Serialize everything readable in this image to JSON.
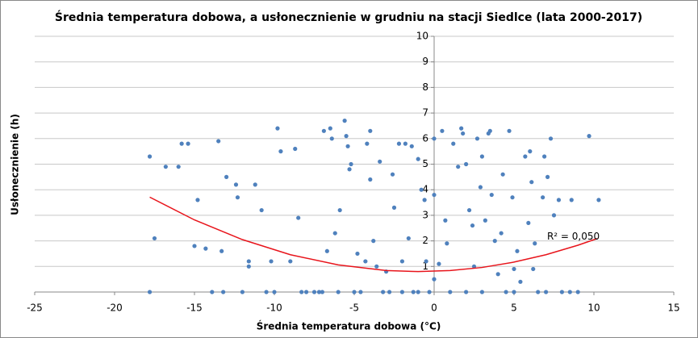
{
  "chart_data": {
    "type": "scatter",
    "title": "Średnia temperatura dobowa, a usłonecznienie w grudniu na stacji Siedlce (lata 2000-2017)",
    "xlabel": "Średnia temperatura dobowa (°C)",
    "ylabel": "Usłonecznienie (h)",
    "xlim": [
      -25,
      15
    ],
    "xticks": [
      -25,
      -20,
      -15,
      -10,
      -5,
      0,
      5,
      10,
      15
    ],
    "ylim": [
      0,
      10
    ],
    "yticks": [
      1,
      2,
      3,
      4,
      5,
      6,
      7,
      8,
      9,
      10
    ],
    "grid": true,
    "color": "#4f81bd",
    "x": [
      -17.8,
      -17.8,
      -17.5,
      -16.8,
      -16,
      -15.8,
      -15.4,
      -15,
      -14.8,
      -14.3,
      -13.9,
      -13.5,
      -13.3,
      -13.2,
      -13,
      -12.4,
      -12.3,
      -12,
      -11.6,
      -11.6,
      -11.2,
      -10.8,
      -10.5,
      -10.2,
      -10,
      -9.8,
      -9.6,
      -9,
      -8.7,
      -8.5,
      -8.3,
      -8,
      -7.5,
      -7.2,
      -7,
      -6.9,
      -6.7,
      -6.5,
      -6.4,
      -6.2,
      -6,
      -5.9,
      -5.6,
      -5.5,
      -5.4,
      -5.3,
      -5.2,
      -5,
      -4.8,
      -4.6,
      -4.3,
      -4.2,
      -4,
      -4,
      -3.8,
      -3.6,
      -3.4,
      -3.2,
      -3,
      -2.8,
      -2.6,
      -2.5,
      -2.2,
      -2,
      -2,
      -1.8,
      -1.6,
      -1.4,
      -1.3,
      -1,
      -1,
      -0.8,
      -0.6,
      -0.5,
      -0.3,
      0,
      0,
      0,
      0.3,
      0.5,
      0.7,
      0.8,
      1,
      1.2,
      1.5,
      1.7,
      1.8,
      2,
      2,
      2.2,
      2.4,
      2.5,
      2.7,
      2.9,
      3,
      3,
      3.2,
      3.4,
      3.5,
      3.6,
      3.8,
      4,
      4.2,
      4.3,
      4.5,
      4.7,
      4.9,
      5,
      5,
      5.2,
      5.4,
      5.7,
      5.9,
      6,
      6.1,
      6.2,
      6.3,
      6.5,
      6.8,
      6.9,
      7,
      7.1,
      7.3,
      7.5,
      7.8,
      8,
      8.5,
      8.6,
      9,
      9.7,
      10.3
    ],
    "values": [
      5.3,
      0,
      2.1,
      4.9,
      4.9,
      5.8,
      5.8,
      1.8,
      3.6,
      1.7,
      0,
      5.9,
      1.6,
      0,
      4.5,
      4.2,
      3.7,
      0,
      1.2,
      1,
      4.2,
      3.2,
      0,
      1.2,
      0,
      6.4,
      5.5,
      1.2,
      5.6,
      2.9,
      0,
      0,
      0,
      0,
      0,
      6.3,
      1.6,
      6.4,
      6,
      2.3,
      0,
      3.2,
      6.7,
      6.1,
      5.7,
      4.8,
      5,
      0,
      1.5,
      0,
      1.2,
      5.8,
      6.3,
      4.4,
      2,
      1,
      5.1,
      0,
      0.8,
      0,
      4.6,
      3.3,
      5.8,
      1.2,
      0,
      5.8,
      2.1,
      5.7,
      0,
      5.2,
      0,
      4,
      3.6,
      1.2,
      0,
      6,
      3.8,
      0.5,
      1.1,
      6.3,
      2.8,
      1.9,
      0,
      5.8,
      4.9,
      6.4,
      6.2,
      5,
      0,
      3.2,
      2.6,
      1,
      6,
      4.1,
      5.3,
      0,
      2.8,
      6.2,
      6.3,
      3.8,
      2,
      0.7,
      2.3,
      4.6,
      0,
      6.3,
      3.7,
      0.9,
      0,
      1.6,
      0.4,
      5.3,
      2.7,
      5.5,
      4.3,
      0.9,
      1.9,
      0,
      3.7,
      5.3,
      0,
      4.5,
      6,
      3,
      3.6,
      0,
      0,
      3.6,
      0,
      6.1,
      3.6
    ],
    "trendline": {
      "color": "#e8141b",
      "x": [
        -17.8,
        -15,
        -12,
        -9,
        -6,
        -3,
        -1,
        1,
        3,
        5,
        7,
        9,
        10.2
      ],
      "values": [
        3.71,
        2.82,
        2.05,
        1.46,
        1.06,
        0.84,
        0.8,
        0.84,
        0.96,
        1.17,
        1.46,
        1.83,
        2.09
      ]
    },
    "annotation": "R² = 0,050"
  }
}
